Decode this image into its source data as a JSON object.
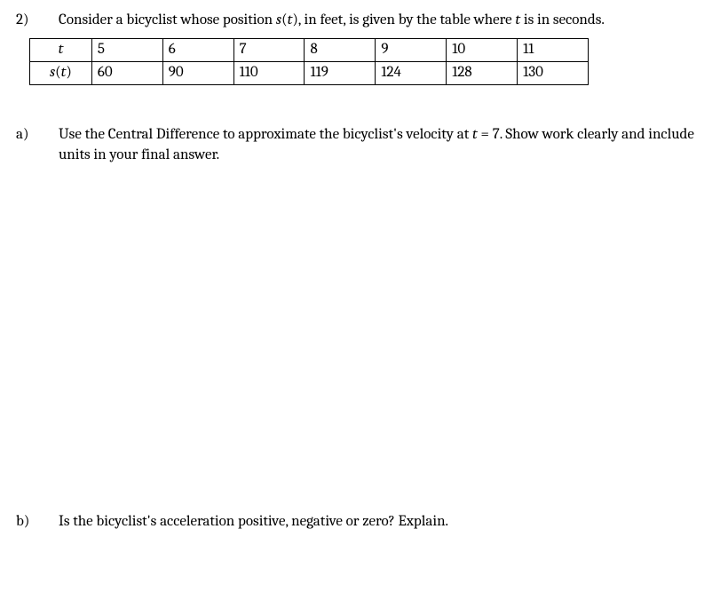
{
  "problem": {
    "number": "2)",
    "stem_prefix": "Consider a bicyclist whose position ",
    "stem_fn": "s",
    "stem_paren_open": "(",
    "stem_var": "t",
    "stem_paren_close": ")",
    "stem_mid": ", in feet, is given by the table where ",
    "stem_var2": "t",
    "stem_suffix": " is in seconds."
  },
  "table": {
    "row1_label": "t",
    "row2_label_s": "s",
    "row2_label_open": "(",
    "row2_label_var": "t",
    "row2_label_close": ")",
    "t": [
      "5",
      "6",
      "7",
      "8",
      "9",
      "10",
      "11"
    ],
    "s": [
      "60",
      "90",
      "110",
      "119",
      "124",
      "128",
      "130"
    ],
    "border_color": "#000000",
    "cell_font_size": 17
  },
  "part_a": {
    "label": "a)",
    "text_prefix": "Use the Central Difference to approximate the bicyclist's velocity at ",
    "eq_lhs": "t",
    "eq_mid": " = ",
    "eq_rhs": "7",
    "text_suffix": ".  Show work clearly and include units in your final answer."
  },
  "part_b": {
    "label": "b)",
    "text": "Is the bicyclist's acceleration positive, negative or zero?  Explain."
  }
}
